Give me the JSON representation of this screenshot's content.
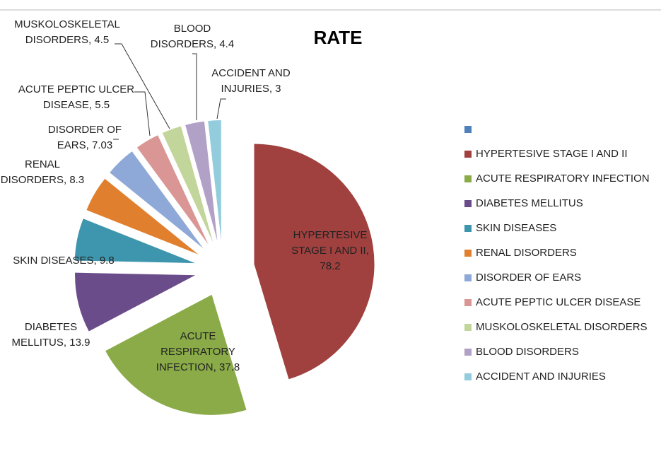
{
  "chart_data": {
    "type": "pie",
    "title": "RATE",
    "categories": [
      null,
      "HYPERTESIVE STAGE I AND II",
      "ACUTE RESPIRATORY INFECTION",
      "DIABETES MELLITUS",
      "SKIN DISEASES",
      "RENAL DISORDERS",
      "DISORDER OF EARS",
      "ACUTE PEPTIC ULCER DISEASE",
      "MUSKOLOSKELETAL DISORDERS",
      "BLOOD DISORDERS",
      "ACCIDENT AND INJURIES"
    ],
    "values": [
      null,
      78.2,
      37.8,
      13.9,
      9.8,
      8.3,
      7.03,
      5.5,
      4.5,
      4.4,
      3
    ],
    "colors": [
      "#4f81bd",
      "#a0413f",
      "#8aab47",
      "#6b4c8a",
      "#3d96ad",
      "#e0802f",
      "#8ea9d8",
      "#d99694",
      "#c2d69b",
      "#b2a1c7",
      "#93cddd"
    ],
    "legend": "right"
  }
}
